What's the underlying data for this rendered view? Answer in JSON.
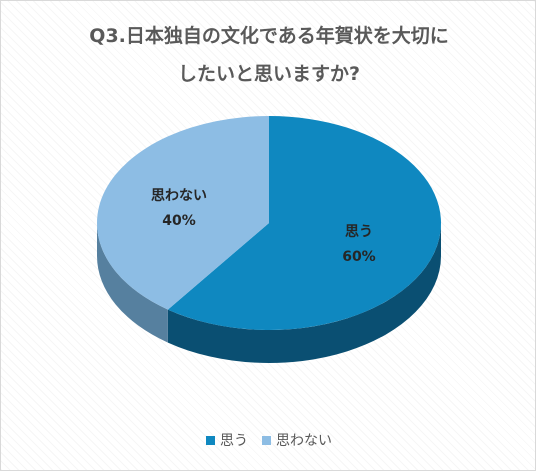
{
  "chart_data": {
    "type": "pie",
    "title_lines": [
      "Q3.日本独自の文化である年賀状を大切に",
      "したいと思いますか?"
    ],
    "categories": [
      "思う",
      "思わない"
    ],
    "values": [
      60,
      40
    ],
    "value_labels": [
      "60%",
      "40%"
    ],
    "colors": [
      "#0f88c0",
      "#8dbde4"
    ],
    "side_colors": [
      "#0a4f72",
      "#56809f"
    ],
    "legend_position": "bottom"
  }
}
